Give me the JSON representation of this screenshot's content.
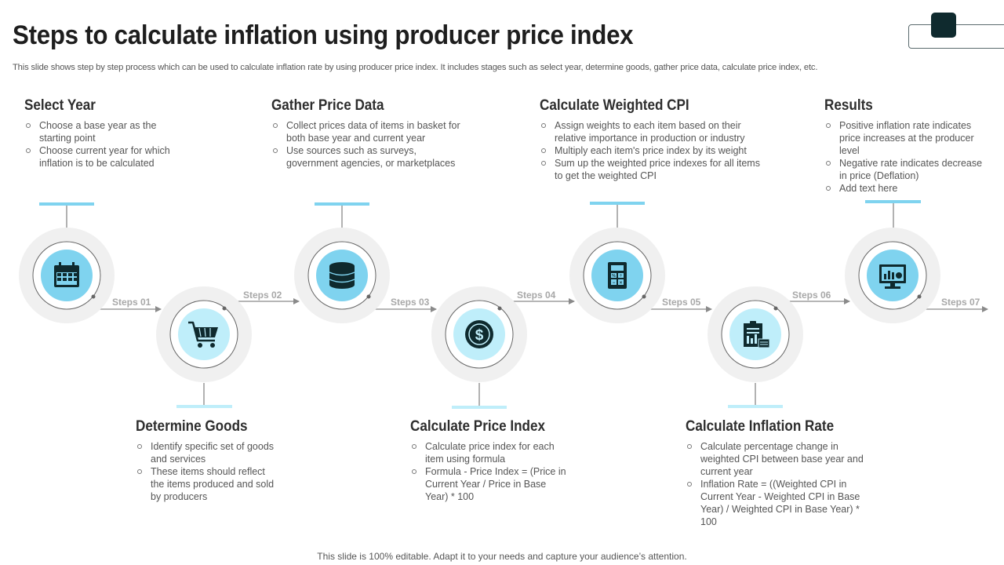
{
  "title": "Steps to calculate inflation using producer price index",
  "subtitle": "This slide shows step by step process which can be used to calculate inflation rate by using producer price index. It includes stages such as select year, determine goods, gather price data, calculate price index, etc.",
  "footer": "This slide is 100% editable. Adapt it to your needs and capture your audience’s attention.",
  "colors": {
    "accent": "#7fd3ef",
    "accent_light": "#bfeefa",
    "ring": "#f0f0f0",
    "arrow": "#8a8a8a",
    "dark": "#0f2a2e"
  },
  "steps": [
    {
      "title": "Select Year",
      "step_label": "Steps 01",
      "icon": "calendar-icon",
      "bullets": [
        "Choose a base year as the starting point",
        "Choose current year for which inflation is to be calculated"
      ]
    },
    {
      "title": "Determine Goods",
      "step_label": "Steps 02",
      "icon": "shopping-cart-icon",
      "bullets": [
        "Identify specific set of goods and services",
        "These items should reflect the items produced and sold by producers"
      ]
    },
    {
      "title": "Gather Price Data",
      "step_label": "Steps 03",
      "icon": "database-icon",
      "bullets": [
        "Collect prices data of items in basket for both base year and current year",
        "Use sources such as surveys, government agencies, or marketplaces"
      ]
    },
    {
      "title": "Calculate Price Index",
      "step_label": "Steps 04",
      "icon": "dollar-coin-icon",
      "bullets": [
        "Calculate price index for each item using formula",
        "Formula - Price Index = (Price in Current Year / Price in Base Year) * 100"
      ]
    },
    {
      "title": "Calculate Weighted CPI",
      "step_label": "Steps 05",
      "icon": "calculator-icon",
      "bullets": [
        "Assign weights to each item based on their relative importance in production or industry",
        "Multiply each item's price index by its weight",
        "Sum up the weighted price indexes for all items to get the weighted CPI"
      ]
    },
    {
      "title": "Calculate Inflation Rate",
      "step_label": "Steps 06",
      "icon": "report-chart-icon",
      "bullets": [
        "Calculate percentage change in weighted CPI between base year and current year",
        "Inflation Rate = ((Weighted CPI in Current Year - Weighted CPI in Base Year) / Weighted CPI in Base Year) * 100"
      ]
    },
    {
      "title": "Results",
      "step_label": "Steps 07",
      "icon": "monitor-chart-icon",
      "bullets": [
        "Positive inflation rate indicates price increases at the producer level",
        "Negative rate indicates decrease in price (Deflation)",
        "Add text here"
      ]
    }
  ]
}
